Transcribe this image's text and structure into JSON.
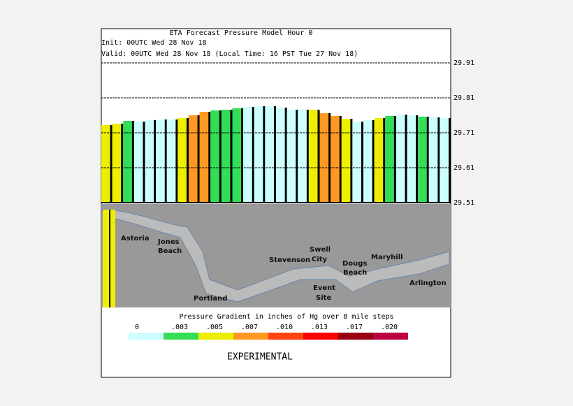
{
  "chart_data": {
    "type": "bar",
    "title": "ETA Forecast Pressure Model Hour 0",
    "init_line": "Init: 00UTC Wed 28 Nov 18",
    "valid_line": "Valid: 00UTC Wed 28 Nov 18 (Local Time: 16 PST Tue 27 Nov 18)",
    "values": [
      29.732,
      29.736,
      29.744,
      29.742,
      29.746,
      29.748,
      29.748,
      29.752,
      29.76,
      29.77,
      29.774,
      29.776,
      29.78,
      29.784,
      29.786,
      29.786,
      29.782,
      29.776,
      29.776,
      29.776,
      29.766,
      29.758,
      29.75,
      29.742,
      29.746,
      29.752,
      29.758,
      29.762,
      29.76,
      29.756,
      29.754,
      29.752
    ],
    "colors": [
      "#eeee00",
      "#eeee00",
      "#33dd55",
      "#ccffff",
      "#ccffff",
      "#ccffff",
      "#ccffff",
      "#eeee00",
      "#ff9922",
      "#ff9922",
      "#33dd55",
      "#33dd55",
      "#33dd55",
      "#ccffff",
      "#ccffff",
      "#ccffff",
      "#ccffff",
      "#ccffff",
      "#ccffff",
      "#eeee00",
      "#ff9922",
      "#ff9922",
      "#eeee00",
      "#ccffff",
      "#ccffff",
      "#eeee00",
      "#33dd55",
      "#ccffff",
      "#ccffff",
      "#33dd55",
      "#ccffff",
      "#ccffff"
    ],
    "ylim": [
      29.51,
      29.91
    ],
    "yticks": [
      29.51,
      29.61,
      29.71,
      29.81,
      29.91
    ],
    "grid": true,
    "map_labels": [
      "Astoria",
      "Jones",
      "Beach",
      "Portland",
      "Stevenson",
      "Swell",
      "City",
      "Event",
      "Site",
      "Dougs",
      "Beach",
      "Maryhill",
      "Arlington"
    ],
    "legend": {
      "title": "Pressure Gradient in inches of Hg over 8 mile steps",
      "items": [
        {
          "label": "0",
          "color": "#ccffff"
        },
        {
          "label": ".003",
          "color": "#33dd55"
        },
        {
          "label": ".005",
          "color": "#eeee00"
        },
        {
          "label": ".007",
          "color": "#ff9922"
        },
        {
          "label": ".010",
          "color": "#ff4411"
        },
        {
          "label": ".013",
          "color": "#ff0000"
        },
        {
          "label": ".017",
          "color": "#990011"
        },
        {
          "label": ".020",
          "color": "#bb0044"
        }
      ]
    },
    "footer": "EXPERIMENTAL"
  }
}
